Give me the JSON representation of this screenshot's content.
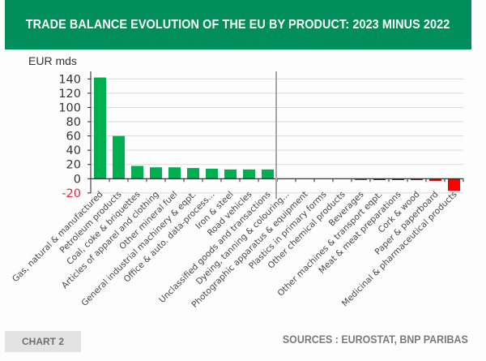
{
  "header": {
    "title": "TRADE BALANCE EVOLUTION OF THE EU BY PRODUCT: 2023 MINUS 2022"
  },
  "footer": {
    "chart_label": "CHART 2",
    "sources": "SOURCES : EUROSTAT, BNP PARIBAS"
  },
  "colors": {
    "header_bg": "#008f5a",
    "positive_bar": "#00b050",
    "negative_bar": "#ff0000",
    "dark_bar": "#111111",
    "dark_red_bar": "#c00000",
    "negative_tick_label": "#e8293b",
    "separator": "#a6a6a6",
    "grid": "#d9d9d9"
  },
  "chart_data": {
    "type": "bar",
    "title": "TRADE BALANCE EVOLUTION OF THE EU BY PRODUCT: 2023 MINUS 2022",
    "ylabel": "EUR mds",
    "xlabel": "",
    "ylim": [
      -20,
      140
    ],
    "yticks": [
      140,
      120,
      100,
      80,
      60,
      40,
      20,
      0,
      -20
    ],
    "grid": true,
    "legend": "none",
    "separator_after_index": 9,
    "categories": [
      "Gas, natural & manufactured",
      "Petroleum products",
      "Coal, coke & briquettes",
      "Articles of apparel and clothing",
      "Other mineral fuel",
      "General industrial machinery & eqpt.",
      "Office & auto. data-process...",
      "Iron & steel",
      "Road vehicles",
      "Unclassified goods and transactions",
      "Dyeing, tanning & colouring...",
      "Photographic apparatus & equipment",
      "Plastics in primary forms",
      "Other chemical products",
      "Beverages",
      "Other machines & transport eqpt.",
      "Meat & meat preparations",
      "Cork & wood",
      "Paper & paperboard",
      "Medicinal & pharmaceutical products"
    ],
    "values": [
      142,
      60,
      18,
      16,
      16,
      15,
      14,
      13,
      13,
      13,
      0,
      0,
      0,
      0,
      -1,
      -1.5,
      -1.5,
      -2,
      -3,
      -17
    ],
    "bar_colors": [
      "#00b050",
      "#00b050",
      "#00b050",
      "#00b050",
      "#00b050",
      "#00b050",
      "#00b050",
      "#00b050",
      "#00b050",
      "#00b050",
      "#00b050",
      "#00b050",
      "#00b050",
      "#00b050",
      "#c00000",
      "#111111",
      "#111111",
      "#e60000",
      "#e60000",
      "#ff0000"
    ]
  }
}
